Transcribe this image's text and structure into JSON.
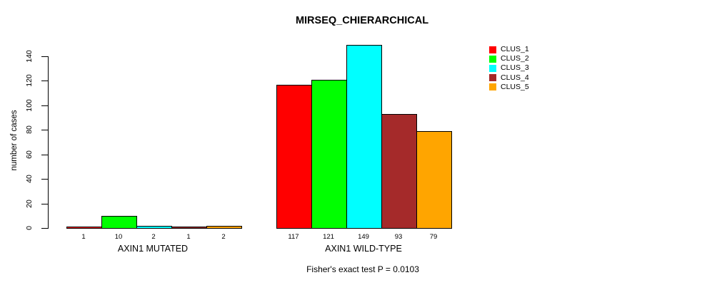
{
  "chart_data": {
    "type": "bar",
    "title": "MIRSEQ_CHIERARCHICAL",
    "ylabel": "number of cases",
    "xlabel": "",
    "groups": [
      "AXIN1 MUTATED",
      "AXIN1 WILD-TYPE"
    ],
    "series": [
      {
        "name": "CLUS_1",
        "color": "#FF0000",
        "values": [
          1,
          117
        ]
      },
      {
        "name": "CLUS_2",
        "color": "#00FF00",
        "values": [
          10,
          121
        ]
      },
      {
        "name": "CLUS_3",
        "color": "#00FFFF",
        "values": [
          2,
          149
        ]
      },
      {
        "name": "CLUS_4",
        "color": "#A52A2A",
        "values": [
          1,
          93
        ]
      },
      {
        "name": "CLUS_5",
        "color": "#FFA500",
        "values": [
          2,
          79
        ]
      }
    ],
    "bar_value_labels": {
      "AXIN1 MUTATED": [
        1,
        10,
        2,
        1,
        2
      ],
      "AXIN1 WILD-TYPE": [
        117,
        121,
        149,
        93,
        79
      ]
    },
    "yticks": [
      0,
      20,
      40,
      60,
      80,
      100,
      120,
      140
    ],
    "ylim": [
      0,
      150
    ],
    "grid": false,
    "legend_position": "right",
    "legend_entries": [
      "CLUS_1",
      "CLUS_2",
      "CLUS_3",
      "CLUS_4",
      "CLUS_5"
    ],
    "annotation": "Fisher's exact test P = 0.0103",
    "axis_color": "#000000",
    "bar_border_color": "#000000",
    "background_color": "#FFFFFF"
  }
}
